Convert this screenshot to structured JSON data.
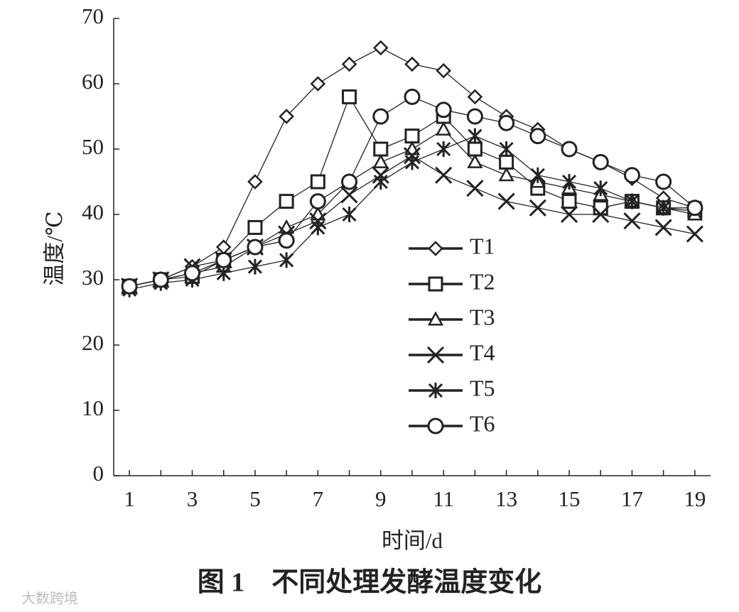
{
  "chart_data": {
    "type": "line",
    "caption": "图 1　不同处理发酵温度变化",
    "xlabel": "时间/d",
    "ylabel": "温度/℃",
    "watermark": "大数跨境",
    "categories": [
      "1",
      null,
      "3",
      null,
      "5",
      null,
      "7",
      null,
      "9",
      null,
      "11",
      null,
      "13",
      null,
      "15",
      null,
      "17",
      null,
      "19"
    ],
    "ylim": [
      0,
      70
    ],
    "yticks": [
      0,
      10,
      20,
      30,
      40,
      50,
      60,
      70
    ],
    "color": "#222222",
    "legend": "center",
    "series": [
      {
        "name": "T1",
        "marker": "diamond",
        "values": [
          29,
          30,
          32,
          35,
          45,
          55,
          60,
          63,
          65.5,
          63,
          62,
          58,
          55,
          53,
          50,
          48,
          45.5,
          42.5,
          41
        ]
      },
      {
        "name": "T2",
        "marker": "square",
        "values": [
          29,
          30,
          30.5,
          33,
          38,
          42,
          45,
          58,
          50,
          52,
          55,
          50,
          48,
          44,
          42,
          41,
          42,
          41,
          40.5
        ]
      },
      {
        "name": "T3",
        "marker": "triangle",
        "values": [
          29,
          30,
          31,
          32,
          35,
          38,
          40,
          45,
          48,
          50,
          53,
          48,
          46,
          45,
          44,
          43,
          42,
          41,
          40
        ]
      },
      {
        "name": "T4",
        "marker": "x",
        "values": [
          29,
          30,
          32,
          33,
          35,
          37,
          39,
          43,
          46,
          49,
          46,
          44,
          42,
          41,
          40,
          40,
          39,
          38,
          37
        ]
      },
      {
        "name": "T5",
        "marker": "asterisk",
        "values": [
          28.5,
          29.5,
          30,
          31,
          32,
          33,
          38,
          40,
          45,
          48,
          50,
          52,
          50,
          46,
          45,
          44,
          42,
          41,
          41
        ]
      },
      {
        "name": "T6",
        "marker": "circle",
        "values": [
          29,
          30,
          31,
          33,
          35,
          36,
          42,
          45,
          55,
          58,
          56,
          55,
          54,
          52,
          50,
          48,
          46,
          45,
          41
        ]
      }
    ]
  }
}
